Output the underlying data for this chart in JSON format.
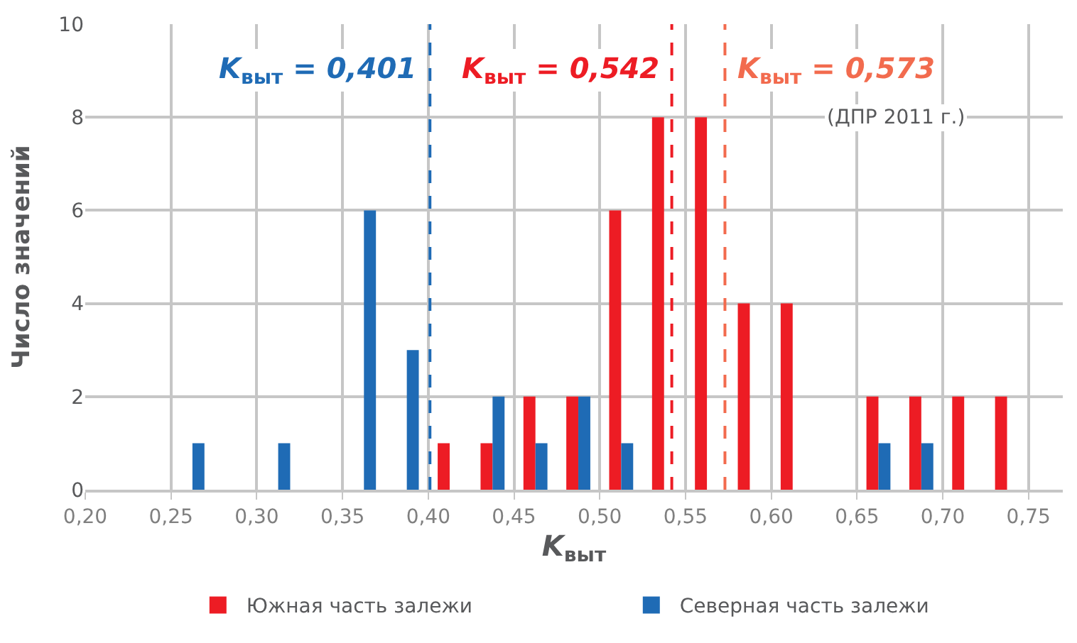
{
  "chart_data": {
    "type": "bar",
    "xlabel": "K$_{выт}$",
    "ylabel": "Число значений",
    "x": [
      0.2625,
      0.2875,
      0.3125,
      0.3375,
      0.3625,
      0.3875,
      0.4125,
      0.4375,
      0.4625,
      0.4875,
      0.5125,
      0.5375,
      0.5625,
      0.5875,
      0.6125,
      0.6375,
      0.6625,
      0.6875,
      0.7125,
      0.7375
    ],
    "series": [
      {
        "name": "Южная часть залежи",
        "color": "#ed1c24",
        "values": [
          null,
          null,
          null,
          null,
          null,
          null,
          1,
          1,
          2,
          2,
          6,
          8,
          8,
          4,
          4,
          null,
          2,
          2,
          2,
          2
        ]
      },
      {
        "name": "Северная часть залежи",
        "color": "#1f6bb5",
        "values": [
          1,
          null,
          1,
          null,
          6,
          3,
          null,
          2,
          1,
          2,
          1,
          null,
          null,
          null,
          null,
          null,
          1,
          1,
          null,
          null
        ]
      }
    ],
    "xlim": [
      0.2,
      0.77
    ],
    "xticks": [
      {
        "value": 0.2,
        "label": "0,20"
      },
      {
        "value": 0.25,
        "label": "0,25"
      },
      {
        "value": 0.3,
        "label": "0,30"
      },
      {
        "value": 0.35,
        "label": "0,35"
      },
      {
        "value": 0.4,
        "label": "0,40"
      },
      {
        "value": 0.45,
        "label": "0,45"
      },
      {
        "value": 0.5,
        "label": "0,50"
      },
      {
        "value": 0.55,
        "label": "0,55"
      },
      {
        "value": 0.6,
        "label": "0,60"
      },
      {
        "value": 0.65,
        "label": "0,65"
      },
      {
        "value": 0.7,
        "label": "0,70"
      },
      {
        "value": 0.75,
        "label": "0,75"
      }
    ],
    "ylim": [
      0,
      10
    ],
    "yticks": [
      0,
      2,
      4,
      6,
      8,
      10
    ],
    "ref_lines": [
      {
        "axis": "x",
        "value": 0.401,
        "label": "K$_{выт}$ = 0,401",
        "color": "#1f6bb5",
        "line_style": "dashed"
      },
      {
        "axis": "x",
        "value": 0.542,
        "label": "K$_{выт}$ = 0,542",
        "color": "#ed1c24",
        "line_style": "dashed"
      },
      {
        "axis": "x",
        "value": 0.573,
        "label": "K$_{выт}$ = 0,573",
        "color": "#f26b4e",
        "line_style": "dashed"
      }
    ],
    "annotations": [
      "(ДПР 2011 г.)"
    ],
    "grid": true,
    "legend": "bottom"
  }
}
